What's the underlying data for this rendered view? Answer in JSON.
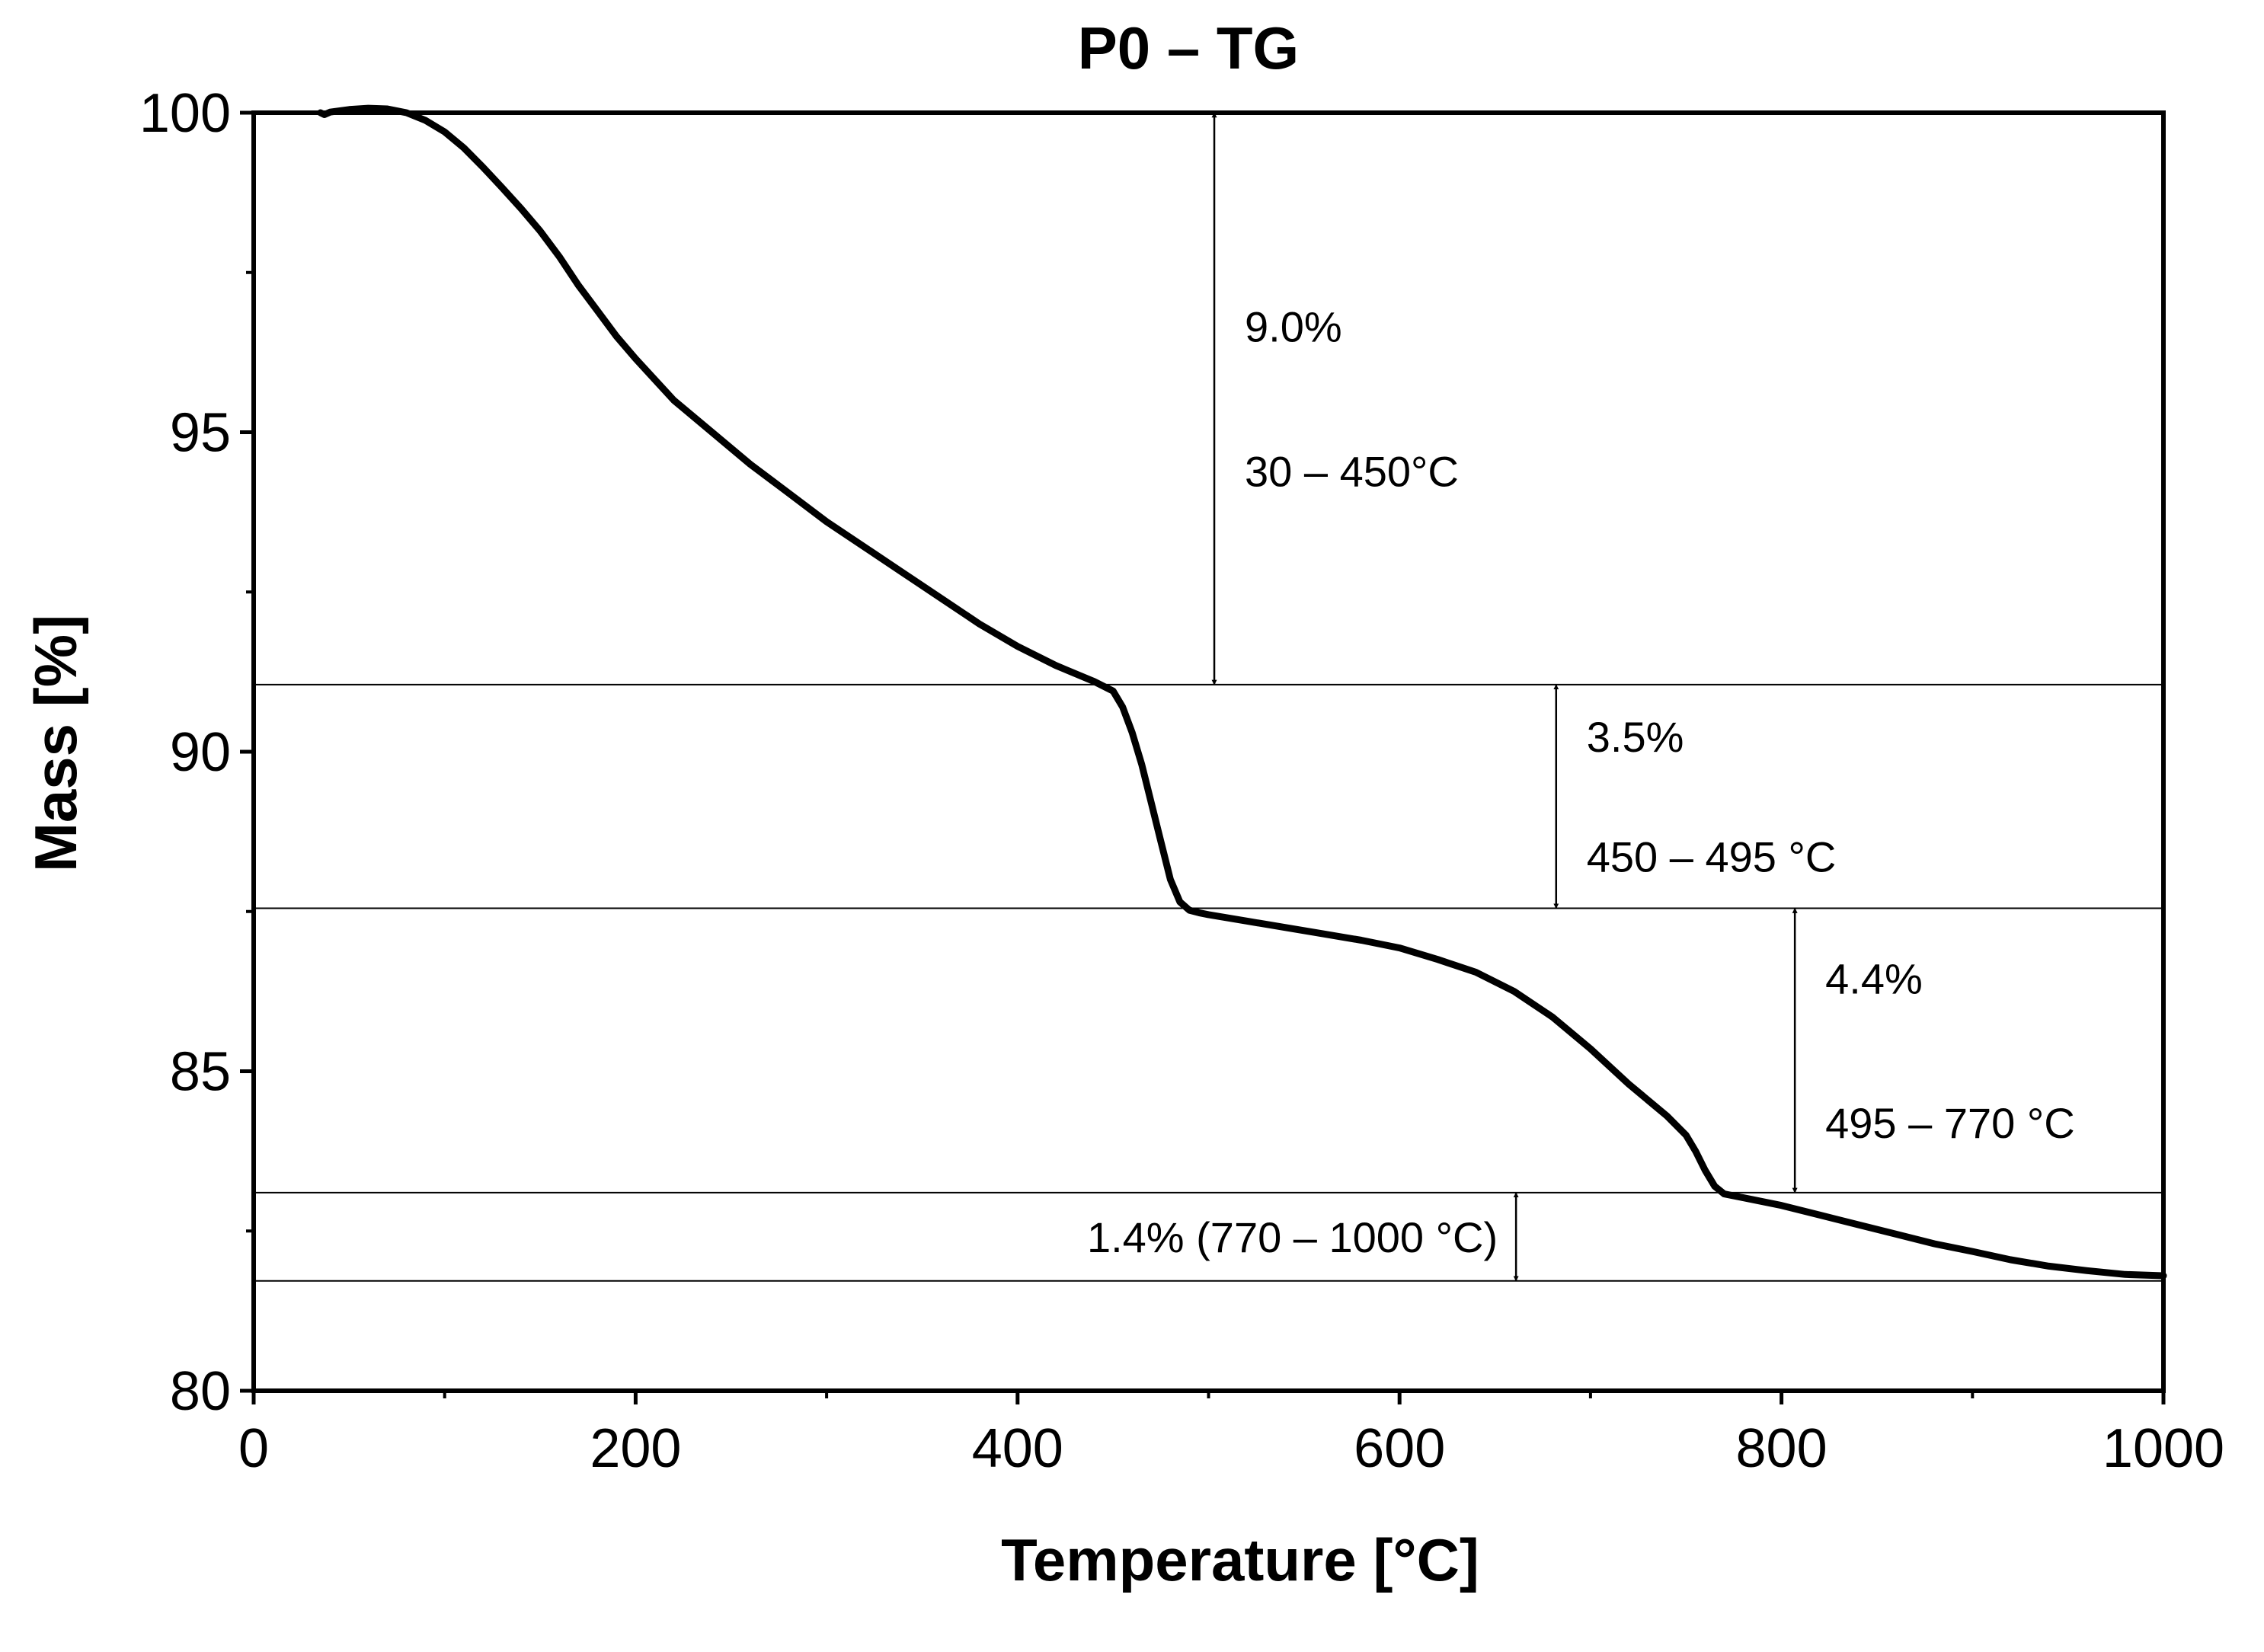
{
  "chart_data": {
    "type": "line",
    "title": "P0 – TG",
    "xlabel": "Temperature [°C]",
    "ylabel": "Mass [%]",
    "xlim": [
      0,
      1000
    ],
    "ylim": [
      80,
      100
    ],
    "x_ticks": [
      0,
      200,
      400,
      600,
      800,
      1000
    ],
    "x_tick_labels": [
      "0",
      "200",
      "400",
      "600",
      "800",
      "1000"
    ],
    "y_ticks": [
      80,
      85,
      90,
      95,
      100
    ],
    "y_tick_labels": [
      "80",
      "85",
      "90",
      "95",
      "100"
    ],
    "grid": false,
    "legend": "none",
    "series": [
      {
        "name": "P0 TG",
        "x": [
          35,
          37,
          40,
          50,
          60,
          70,
          80,
          90,
          100,
          110,
          120,
          130,
          140,
          150,
          160,
          170,
          180,
          190,
          200,
          220,
          240,
          260,
          280,
          300,
          320,
          340,
          360,
          380,
          400,
          420,
          440,
          450,
          455,
          460,
          465,
          470,
          475,
          480,
          485,
          490,
          495,
          500,
          520,
          540,
          560,
          580,
          600,
          620,
          640,
          660,
          680,
          700,
          720,
          740,
          750,
          755,
          760,
          765,
          770,
          780,
          800,
          820,
          840,
          860,
          880,
          900,
          920,
          940,
          960,
          980,
          1000
        ],
        "y": [
          100.0,
          99.97,
          100.01,
          100.05,
          100.07,
          100.06,
          100.0,
          99.88,
          99.7,
          99.45,
          99.15,
          98.83,
          98.5,
          98.15,
          97.75,
          97.3,
          96.9,
          96.5,
          96.15,
          95.5,
          95.0,
          94.5,
          94.05,
          93.6,
          93.2,
          92.8,
          92.4,
          92.0,
          91.65,
          91.35,
          91.1,
          90.95,
          90.7,
          90.3,
          89.8,
          89.2,
          88.6,
          88.0,
          87.65,
          87.52,
          87.48,
          87.45,
          87.35,
          87.25,
          87.15,
          87.05,
          86.93,
          86.75,
          86.55,
          86.25,
          85.85,
          85.35,
          84.8,
          84.3,
          84.0,
          83.75,
          83.45,
          83.2,
          83.08,
          83.02,
          82.9,
          82.75,
          82.6,
          82.45,
          82.3,
          82.18,
          82.05,
          81.95,
          81.88,
          81.82,
          81.8
        ]
      }
    ],
    "reference_lines": [
      91.05,
      87.55,
      83.1,
      81.72
    ],
    "annotations": [
      {
        "label_line1": "9.0%",
        "label_line2": "30 – 450°C",
        "x": 503,
        "y_top": 100,
        "y_bottom": 91.05
      },
      {
        "label_line1": "3.5%",
        "label_line2": "450 – 495 °C",
        "x": 682,
        "y_top": 91.05,
        "y_bottom": 87.55
      },
      {
        "label_line1": "4.4%",
        "label_line2": "495 – 770 °C",
        "x": 807,
        "y_top": 87.55,
        "y_bottom": 83.1
      },
      {
        "label_line1": "1.4% (770 – 1000 °C)",
        "label_line2": "",
        "x": 661,
        "y_top": 83.1,
        "y_bottom": 81.72
      }
    ]
  }
}
